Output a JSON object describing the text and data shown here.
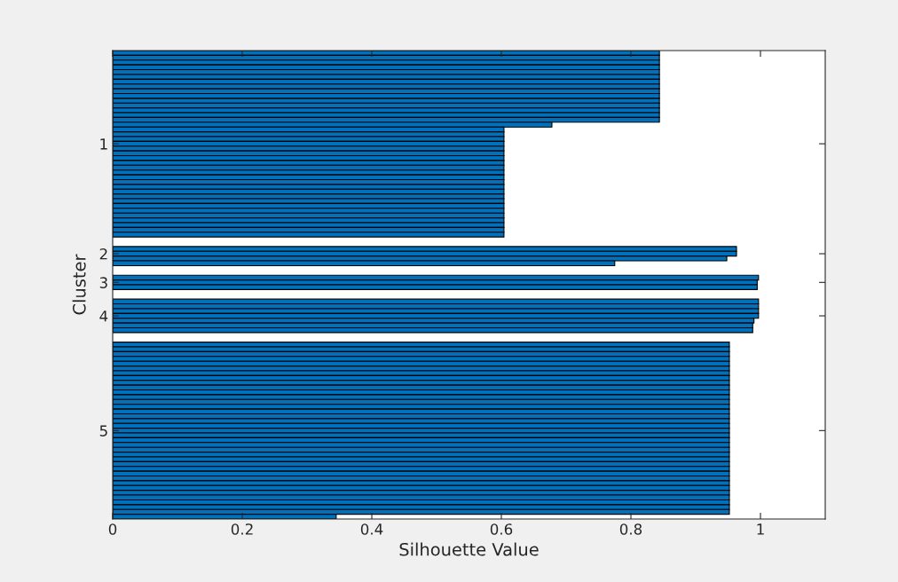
{
  "chart_data": {
    "type": "bar",
    "orientation": "horizontal",
    "xlabel": "Silhouette Value",
    "ylabel": "Cluster",
    "categories": [
      null,
      null,
      null,
      null,
      null,
      null,
      null,
      null,
      null,
      null,
      null,
      null,
      null,
      null,
      null,
      null,
      null,
      null,
      null,
      "1",
      null,
      null,
      null,
      null,
      null,
      null,
      null,
      null,
      null,
      null,
      null,
      null,
      null,
      null,
      null,
      null,
      null,
      null,
      null,
      null,
      null,
      null,
      "2",
      null,
      null,
      null,
      null,
      null,
      "3",
      null,
      null,
      null,
      null,
      null,
      null,
      "4",
      null,
      null,
      null,
      null,
      null,
      null,
      null,
      null,
      null,
      null,
      null,
      null,
      null,
      null,
      null,
      null,
      null,
      null,
      null,
      null,
      null,
      null,
      null,
      "5",
      null,
      null,
      null,
      null,
      null,
      null,
      null,
      null,
      null,
      null,
      null,
      null,
      null,
      null,
      null,
      null,
      null,
      null
    ],
    "values": [
      0.844,
      0.844,
      0.844,
      0.844,
      0.844,
      0.844,
      0.844,
      0.844,
      0.844,
      0.844,
      0.844,
      0.844,
      0.844,
      0.844,
      0.844,
      0.678,
      0.604,
      0.604,
      0.604,
      0.604,
      0.604,
      0.604,
      0.604,
      0.604,
      0.604,
      0.604,
      0.604,
      0.604,
      0.604,
      0.604,
      0.604,
      0.604,
      0.604,
      0.604,
      0.604,
      0.604,
      0.604,
      0.604,
      0.604,
      null,
      null,
      0.963,
      0.963,
      0.948,
      0.775,
      null,
      null,
      0.997,
      0.995,
      0.995,
      null,
      null,
      0.997,
      0.997,
      0.997,
      0.997,
      0.99,
      0.988,
      0.988,
      null,
      null,
      0.952,
      0.952,
      0.952,
      0.952,
      0.952,
      0.952,
      0.952,
      0.952,
      0.952,
      0.952,
      0.952,
      0.952,
      0.952,
      0.952,
      0.952,
      0.952,
      0.952,
      0.952,
      0.952,
      0.952,
      0.952,
      0.952,
      0.952,
      0.952,
      0.952,
      0.952,
      0.952,
      0.952,
      0.952,
      0.952,
      0.952,
      0.952,
      0.952,
      0.952,
      0.952,
      0.952,
      0.345
    ],
    "color": "#0072bd",
    "xlim": [
      0,
      1.1
    ],
    "xticks": [
      0,
      0.2,
      0.4,
      0.6,
      0.8,
      1
    ]
  }
}
